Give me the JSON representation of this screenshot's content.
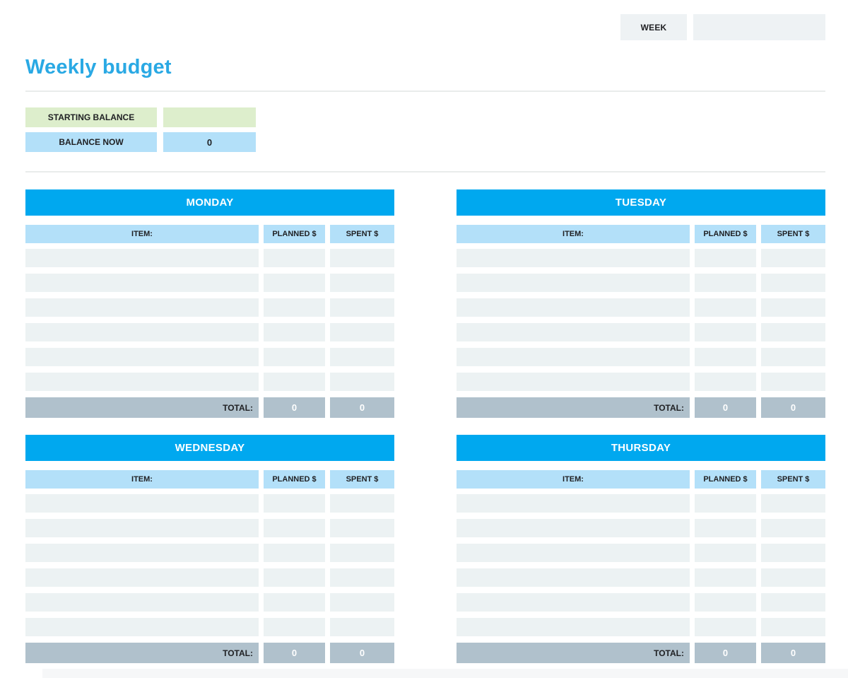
{
  "colors": {
    "title_blue": "#2aa9e4",
    "day_blue": "#00a8ef",
    "col_header_blue": "#b3e0f9",
    "row_gray": "#ecf2f3",
    "total_gray": "#b0c1cc",
    "green": "#ddeecc",
    "field_gray": "#eef2f4",
    "divider": "#e9eceb",
    "text_dark": "#202124",
    "strip": "#f6f7f8"
  },
  "week": {
    "label": "WEEK",
    "value": ""
  },
  "title": "Weekly budget",
  "balance": {
    "starting": {
      "label": "STARTING BALANCE",
      "value": ""
    },
    "now": {
      "label": "BALANCE NOW",
      "value": "0"
    }
  },
  "table_columns": {
    "item": "ITEM:",
    "planned": "PLANNED $",
    "spent": "SPENT $"
  },
  "total_label": "TOTAL:",
  "empty_row_count": 6,
  "days": [
    {
      "name": "MONDAY",
      "total_planned": "0",
      "total_spent": "0"
    },
    {
      "name": "TUESDAY",
      "total_planned": "0",
      "total_spent": "0"
    },
    {
      "name": "WEDNESDAY",
      "total_planned": "0",
      "total_spent": "0"
    },
    {
      "name": "THURSDAY",
      "total_planned": "0",
      "total_spent": "0"
    }
  ]
}
